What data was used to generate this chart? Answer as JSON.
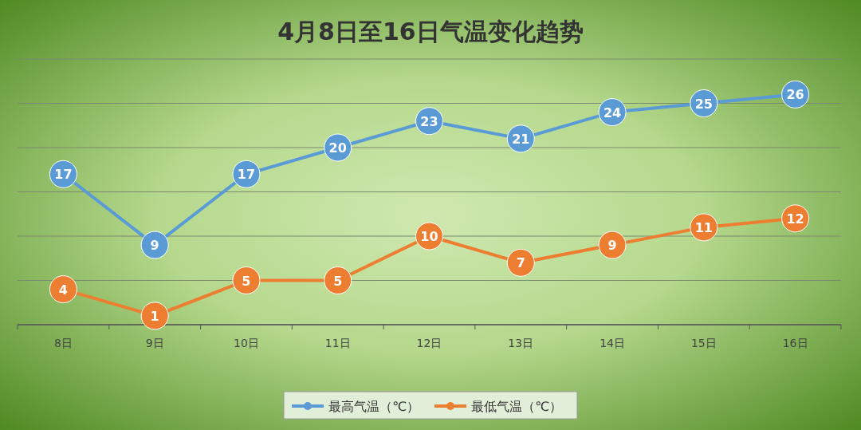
{
  "chart_data": {
    "type": "line",
    "title": "4月8日至16日气温变化趋势",
    "categories": [
      "8日",
      "9日",
      "10日",
      "11日",
      "12日",
      "13日",
      "14日",
      "15日",
      "16日"
    ],
    "series": [
      {
        "name": "最高气温（℃）",
        "color": "#5b9bd5",
        "values": [
          17,
          9,
          17,
          20,
          23,
          21,
          24,
          25,
          26
        ]
      },
      {
        "name": "最低气温（℃）",
        "color": "#ed7d31",
        "values": [
          4,
          1,
          5,
          5,
          10,
          7,
          9,
          11,
          12
        ]
      }
    ],
    "ylim": [
      0,
      30
    ],
    "yticks": [
      {
        "value": 0,
        "label": null
      },
      {
        "value": 5,
        "label": null
      },
      {
        "value": 10,
        "label": null
      },
      {
        "value": 15,
        "label": null
      },
      {
        "value": 20,
        "label": null
      },
      {
        "value": 25,
        "label": null
      },
      {
        "value": 30,
        "label": null
      }
    ],
    "grid": "y",
    "legend": "bottom",
    "marker": "circle",
    "data_labels": true,
    "tick_labels": "x"
  }
}
